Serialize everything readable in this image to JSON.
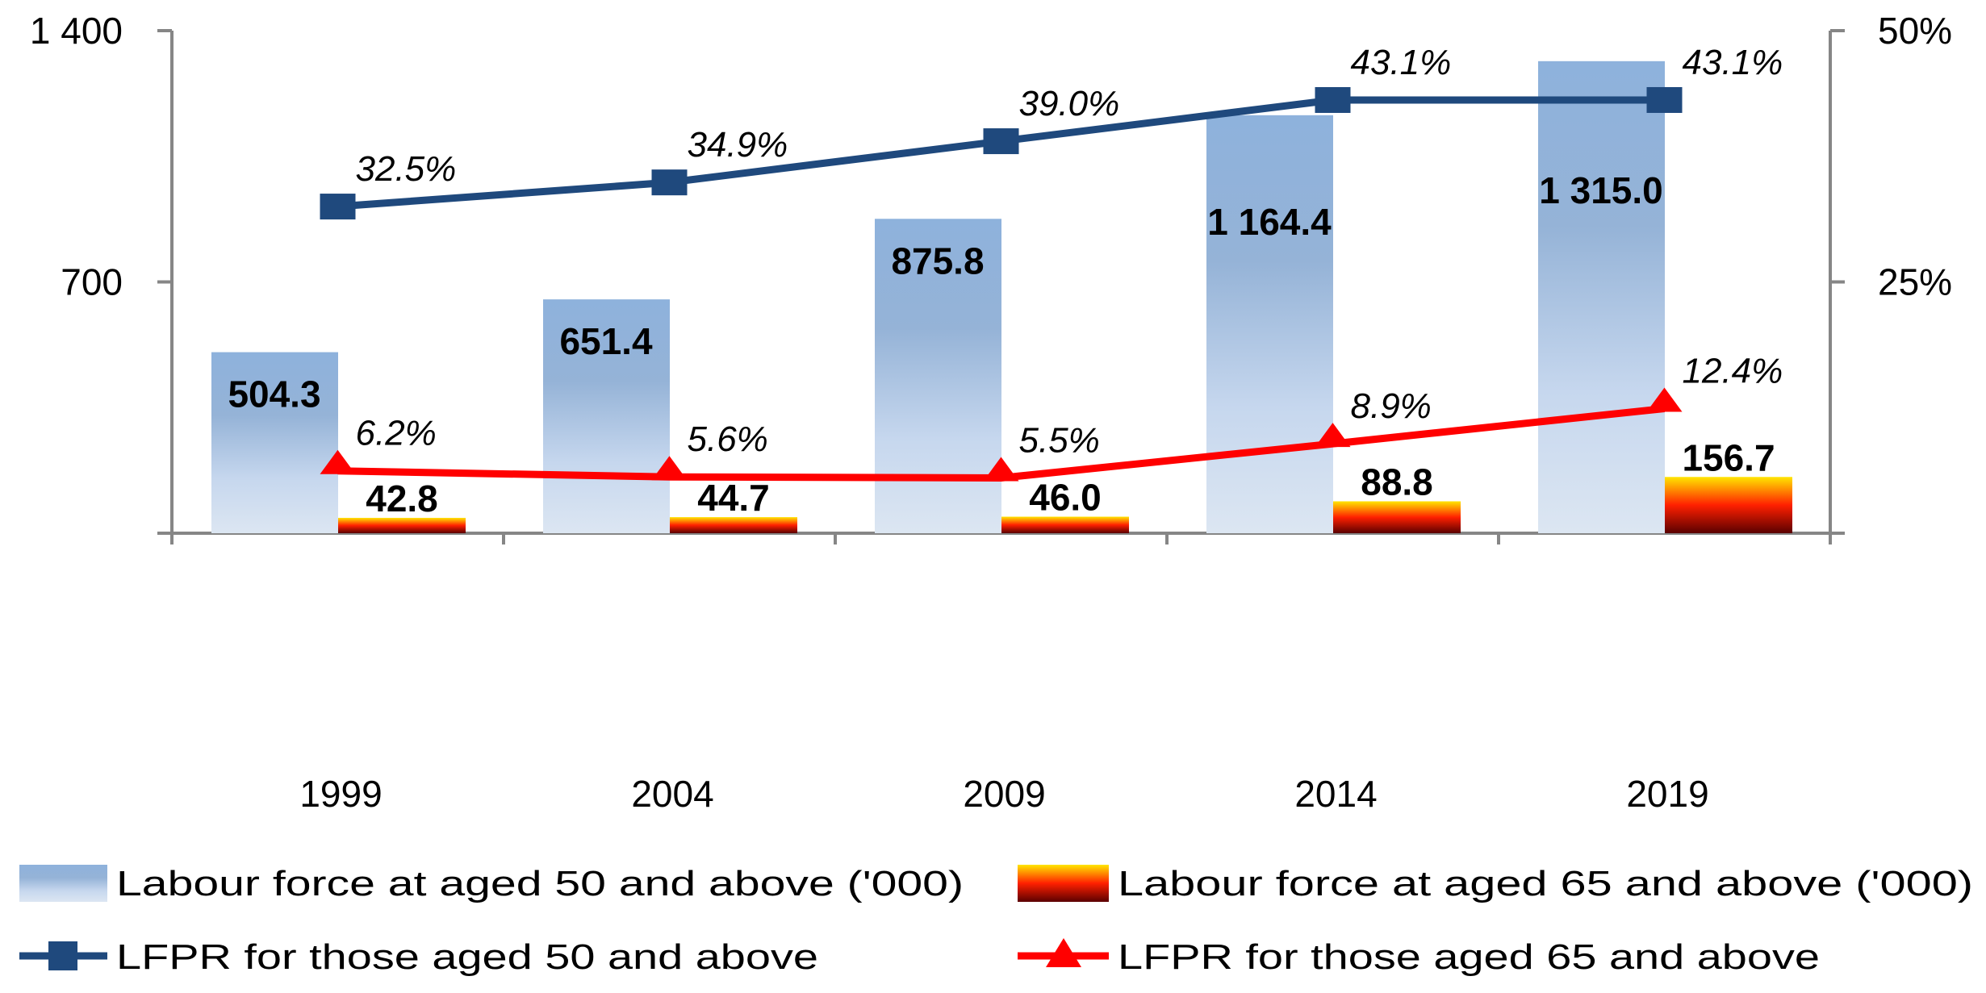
{
  "chart_data": {
    "type": "bar",
    "categories": [
      "1999",
      "2004",
      "2009",
      "2014",
      "2019"
    ],
    "left_axis": {
      "ylim": [
        0,
        1400
      ],
      "ticks": [
        0,
        700,
        1400
      ],
      "tick_labels": [
        "",
        "700",
        "1 400"
      ]
    },
    "right_axis": {
      "ylim": [
        0,
        50
      ],
      "ticks": [
        0,
        25,
        50
      ],
      "tick_labels": [
        "",
        "25%",
        "50%"
      ]
    },
    "grid": false,
    "legend_position": "bottom",
    "series": [
      {
        "name": "Labour force at aged 50 and above ('000)",
        "type": "bar",
        "axis": "left",
        "values": [
          504.3,
          651.4,
          875.8,
          1164.4,
          1315.0
        ],
        "labels": [
          "504.3",
          "651.4",
          "875.8",
          "1 164.4",
          "1 315.0"
        ],
        "colors": [
          "#8eb2dc",
          "#dce6f2"
        ]
      },
      {
        "name": "Labour force at aged 65 and above  ('000)",
        "type": "bar",
        "axis": "left",
        "values": [
          42.8,
          44.7,
          46.0,
          88.8,
          156.7
        ],
        "labels": [
          "42.8",
          "44.7",
          "46.0",
          "88.8",
          "156.7"
        ],
        "colors": [
          "#ffe600",
          "#ff1a00",
          "#5a0000"
        ]
      },
      {
        "name": "LFPR for those aged 50 and above",
        "type": "line",
        "axis": "right",
        "marker": "square",
        "values": [
          32.5,
          34.9,
          39.0,
          43.1,
          43.1
        ],
        "labels": [
          "32.5%",
          "34.9%",
          "39.0%",
          "43.1%",
          "43.1%"
        ],
        "color": "#1f497d"
      },
      {
        "name": "LFPR for those aged 65 and above",
        "type": "line",
        "axis": "right",
        "marker": "triangle",
        "values": [
          6.2,
          5.6,
          5.5,
          8.9,
          12.4
        ],
        "labels": [
          "6.2%",
          "5.6%",
          "5.5%",
          "8.9%",
          "12.4%"
        ],
        "color": "#ff0000"
      }
    ]
  }
}
